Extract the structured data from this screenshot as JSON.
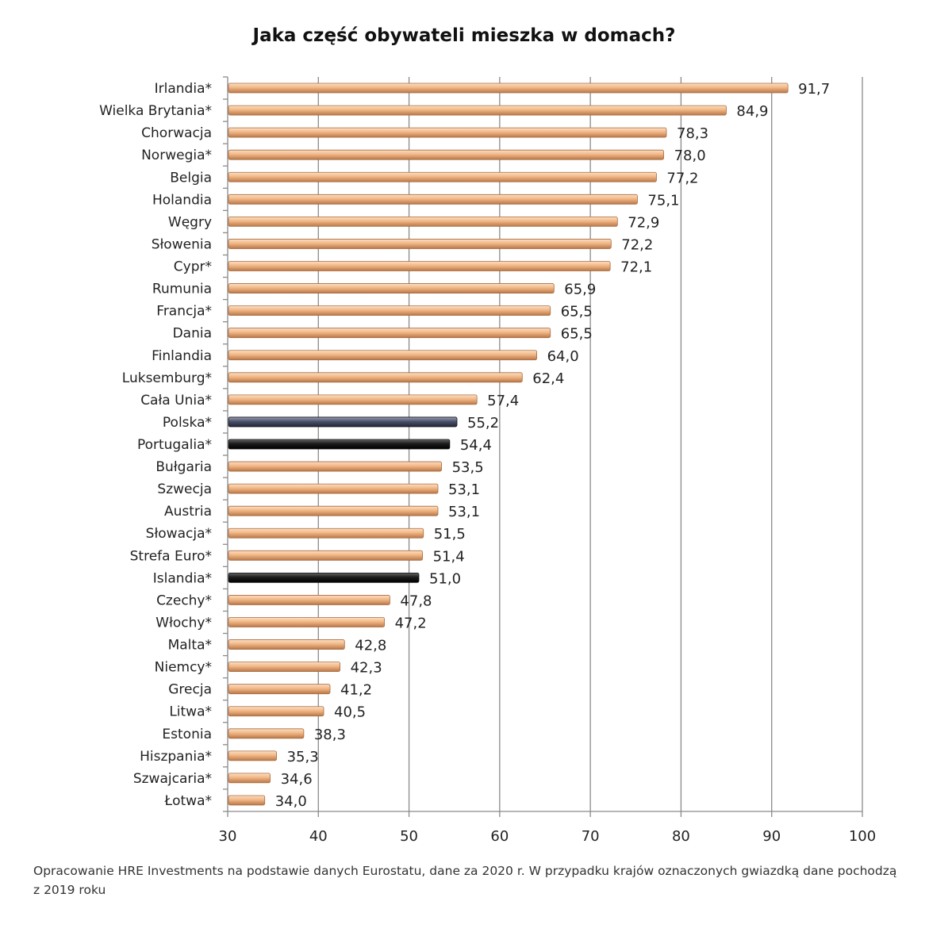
{
  "chart_data": {
    "type": "bar",
    "orientation": "horizontal",
    "title": "Jaka część obywateli mieszka w domach?",
    "categories": [
      "Irlandia*",
      "Wielka Brytania*",
      "Chorwacja",
      "Norwegia*",
      "Belgia",
      "Holandia",
      "Węgry",
      "Słowenia",
      "Cypr*",
      "Rumunia",
      "Francja*",
      "Dania",
      "Finlandia",
      "Luksemburg*",
      "Cała Unia*",
      "Polska*",
      "Portugalia*",
      "Bułgaria",
      "Szwecja",
      "Austria",
      "Słowacja*",
      "Strefa Euro*",
      "Islandia*",
      "Czechy*",
      "Włochy*",
      "Malta*",
      "Niemcy*",
      "Grecja",
      "Litwa*",
      "Estonia",
      "Hiszpania*",
      "Szwajcaria*",
      "Łotwa*"
    ],
    "values": [
      91.7,
      84.9,
      78.3,
      78.0,
      77.2,
      75.1,
      72.9,
      72.2,
      72.1,
      65.9,
      65.5,
      65.5,
      64.0,
      62.4,
      57.4,
      55.2,
      54.4,
      53.5,
      53.1,
      53.1,
      51.5,
      51.4,
      51.0,
      47.8,
      47.2,
      42.8,
      42.3,
      41.2,
      40.5,
      38.3,
      35.3,
      34.6,
      34.0
    ],
    "value_labels": [
      "91,7",
      "84,9",
      "78,3",
      "78,0",
      "77,2",
      "75,1",
      "72,9",
      "72,2",
      "72,1",
      "65,9",
      "65,5",
      "65,5",
      "64,0",
      "62,4",
      "57,4",
      "55,2",
      "54,4",
      "53,5",
      "53,1",
      "53,1",
      "51,5",
      "51,4",
      "51,0",
      "47,8",
      "47,2",
      "42,8",
      "42,3",
      "41,2",
      "40,5",
      "38,3",
      "35,3",
      "34,6",
      "34,0"
    ],
    "xlim": [
      30,
      100
    ],
    "xticks": [
      "30",
      "40",
      "50",
      "60",
      "70",
      "80",
      "90",
      "100"
    ],
    "grid": "vertical",
    "colors": {
      "default": "#f0b27e",
      "Polska*": "#4a5168",
      "Portugalia*": "#1c1c1c",
      "Islandia*": "#1c1c1c"
    }
  },
  "footnote": "Opracowanie HRE Investments na podstawie danych Eurostatu, dane za 2020 r. W przypadku krajów oznaczonych gwiazdką dane pochodzą z 2019 roku"
}
